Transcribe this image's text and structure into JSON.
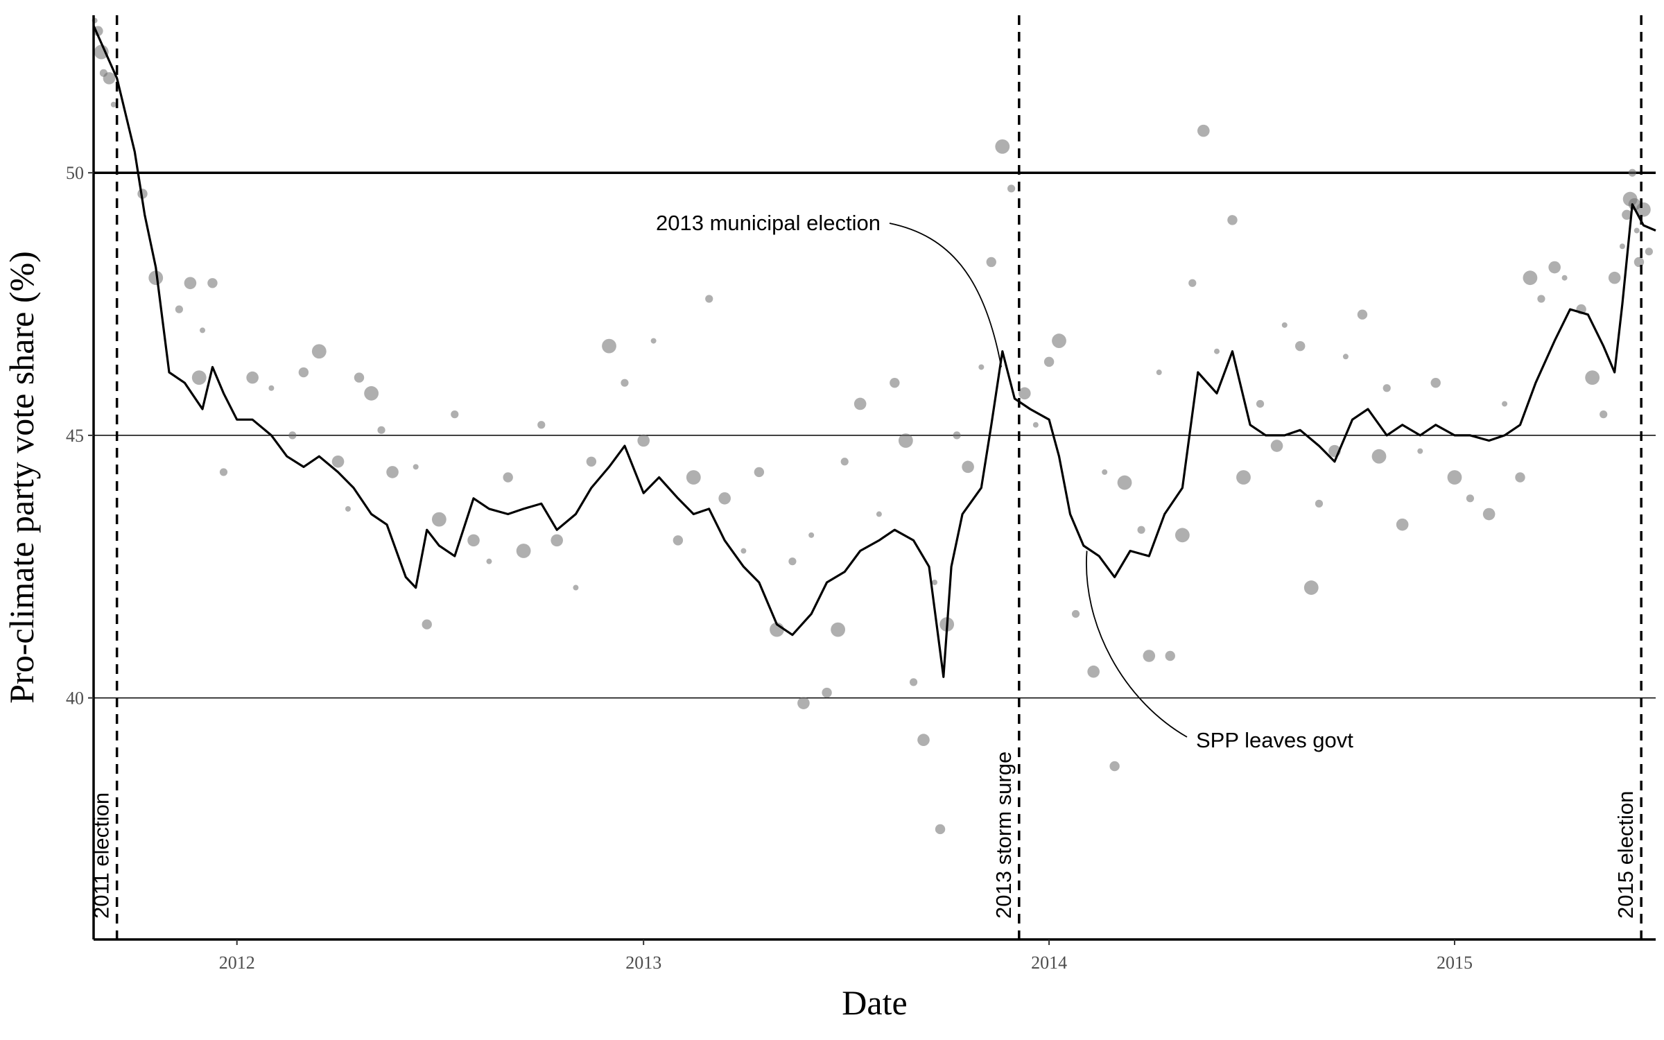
{
  "chart_data": {
    "type": "line",
    "xlabel": "Date",
    "ylabel": "Pro-climate party vote share (%)",
    "x_range": [
      "2011-08-25",
      "2015-07-01"
    ],
    "ylim": [
      35.4,
      53
    ],
    "x_ticks": [
      {
        "date": "2012-01-01",
        "label": "2012"
      },
      {
        "date": "2013-01-01",
        "label": "2013"
      },
      {
        "date": "2014-01-01",
        "label": "2014"
      },
      {
        "date": "2015-01-01",
        "label": "2015"
      }
    ],
    "y_ticks": [
      40,
      45,
      50
    ],
    "reference_lines": [
      {
        "y": 50,
        "style": "solid-bold"
      },
      {
        "y": 45,
        "style": "solid-thin"
      },
      {
        "y": 40,
        "style": "solid-thin"
      }
    ],
    "events": [
      {
        "date": "2011-09-15",
        "label": "2011 election"
      },
      {
        "date": "2013-12-05",
        "label": "2013 storm surge"
      },
      {
        "date": "2015-06-18",
        "label": "2015 election"
      }
    ],
    "annotations": [
      {
        "label": "2013 municipal election",
        "date": "2013-11-19",
        "y": 46.3
      },
      {
        "label": "SPP leaves govt",
        "date": "2014-02-04",
        "y": 42.8
      }
    ],
    "series": [
      {
        "type": "line",
        "values": [
          [
            "2011-08-25",
            52.8
          ],
          [
            "2011-09-15",
            51.8
          ],
          [
            "2011-10-01",
            50.4
          ],
          [
            "2011-10-10",
            49.2
          ],
          [
            "2011-10-20",
            48.2
          ],
          [
            "2011-11-01",
            46.2
          ],
          [
            "2011-11-15",
            46.0
          ],
          [
            "2011-12-01",
            45.5
          ],
          [
            "2011-12-10",
            46.3
          ],
          [
            "2011-12-20",
            45.8
          ],
          [
            "2012-01-01",
            45.3
          ],
          [
            "2012-01-15",
            45.3
          ],
          [
            "2012-02-01",
            45.0
          ],
          [
            "2012-02-15",
            44.6
          ],
          [
            "2012-03-01",
            44.4
          ],
          [
            "2012-03-15",
            44.6
          ],
          [
            "2012-04-01",
            44.3
          ],
          [
            "2012-04-15",
            44.0
          ],
          [
            "2012-05-01",
            43.5
          ],
          [
            "2012-05-15",
            43.3
          ],
          [
            "2012-06-01",
            42.3
          ],
          [
            "2012-06-10",
            42.1
          ],
          [
            "2012-06-20",
            43.2
          ],
          [
            "2012-07-01",
            42.9
          ],
          [
            "2012-07-15",
            42.7
          ],
          [
            "2012-08-01",
            43.8
          ],
          [
            "2012-08-15",
            43.6
          ],
          [
            "2012-09-01",
            43.5
          ],
          [
            "2012-09-15",
            43.6
          ],
          [
            "2012-10-01",
            43.7
          ],
          [
            "2012-10-15",
            43.2
          ],
          [
            "2012-11-01",
            43.5
          ],
          [
            "2012-11-15",
            44.0
          ],
          [
            "2012-12-01",
            44.4
          ],
          [
            "2012-12-15",
            44.8
          ],
          [
            "2013-01-01",
            43.9
          ],
          [
            "2013-01-15",
            44.2
          ],
          [
            "2013-02-01",
            43.8
          ],
          [
            "2013-02-15",
            43.5
          ],
          [
            "2013-03-01",
            43.6
          ],
          [
            "2013-03-15",
            43.0
          ],
          [
            "2013-04-01",
            42.5
          ],
          [
            "2013-04-15",
            42.2
          ],
          [
            "2013-05-01",
            41.4
          ],
          [
            "2013-05-15",
            41.2
          ],
          [
            "2013-06-01",
            41.6
          ],
          [
            "2013-06-15",
            42.2
          ],
          [
            "2013-07-01",
            42.4
          ],
          [
            "2013-07-15",
            42.8
          ],
          [
            "2013-08-01",
            43.0
          ],
          [
            "2013-08-15",
            43.2
          ],
          [
            "2013-09-01",
            43.0
          ],
          [
            "2013-09-15",
            42.5
          ],
          [
            "2013-09-28",
            40.4
          ],
          [
            "2013-10-05",
            42.5
          ],
          [
            "2013-10-15",
            43.5
          ],
          [
            "2013-11-01",
            44.0
          ],
          [
            "2013-11-10",
            45.2
          ],
          [
            "2013-11-20",
            46.6
          ],
          [
            "2013-12-01",
            45.7
          ],
          [
            "2013-12-15",
            45.5
          ],
          [
            "2014-01-01",
            45.3
          ],
          [
            "2014-01-10",
            44.6
          ],
          [
            "2014-01-20",
            43.5
          ],
          [
            "2014-02-01",
            42.9
          ],
          [
            "2014-02-15",
            42.7
          ],
          [
            "2014-03-01",
            42.3
          ],
          [
            "2014-03-15",
            42.8
          ],
          [
            "2014-04-01",
            42.7
          ],
          [
            "2014-04-15",
            43.5
          ],
          [
            "2014-05-01",
            44.0
          ],
          [
            "2014-05-15",
            46.2
          ],
          [
            "2014-06-01",
            45.8
          ],
          [
            "2014-06-15",
            46.6
          ],
          [
            "2014-07-01",
            45.2
          ],
          [
            "2014-07-15",
            45.0
          ],
          [
            "2014-08-01",
            45.0
          ],
          [
            "2014-08-15",
            45.1
          ],
          [
            "2014-09-01",
            44.8
          ],
          [
            "2014-09-15",
            44.5
          ],
          [
            "2014-10-01",
            45.3
          ],
          [
            "2014-10-15",
            45.5
          ],
          [
            "2014-11-01",
            45.0
          ],
          [
            "2014-11-15",
            45.2
          ],
          [
            "2014-12-01",
            45.0
          ],
          [
            "2014-12-15",
            45.2
          ],
          [
            "2015-01-01",
            45.0
          ],
          [
            "2015-01-15",
            45.0
          ],
          [
            "2015-02-01",
            44.9
          ],
          [
            "2015-02-15",
            45.0
          ],
          [
            "2015-03-01",
            45.2
          ],
          [
            "2015-03-15",
            46.0
          ],
          [
            "2015-04-01",
            46.8
          ],
          [
            "2015-04-15",
            47.4
          ],
          [
            "2015-05-01",
            47.3
          ],
          [
            "2015-05-15",
            46.7
          ],
          [
            "2015-05-25",
            46.2
          ],
          [
            "2015-06-01",
            47.5
          ],
          [
            "2015-06-10",
            49.4
          ],
          [
            "2015-06-20",
            49.0
          ],
          [
            "2015-07-01",
            48.9
          ]
        ]
      },
      {
        "type": "scatter",
        "values": [
          [
            "2011-08-26",
            52.9
          ],
          [
            "2011-08-29",
            52.7
          ],
          [
            "2011-09-01",
            52.3
          ],
          [
            "2011-09-03",
            51.9
          ],
          [
            "2011-09-08",
            51.8
          ],
          [
            "2011-09-12",
            51.3
          ],
          [
            "2011-10-08",
            49.6
          ],
          [
            "2011-10-20",
            48.0
          ],
          [
            "2011-11-10",
            47.4
          ],
          [
            "2011-11-20",
            47.9
          ],
          [
            "2011-12-01",
            47.0
          ],
          [
            "2011-12-10",
            47.9
          ],
          [
            "2011-11-28",
            46.1
          ],
          [
            "2011-12-20",
            44.3
          ],
          [
            "2012-01-15",
            46.1
          ],
          [
            "2012-02-01",
            45.9
          ],
          [
            "2012-03-01",
            46.2
          ],
          [
            "2012-03-15",
            46.6
          ],
          [
            "2012-02-20",
            45.0
          ],
          [
            "2012-04-01",
            44.5
          ],
          [
            "2012-04-10",
            43.6
          ],
          [
            "2012-04-20",
            46.1
          ],
          [
            "2012-05-01",
            45.8
          ],
          [
            "2012-05-10",
            45.1
          ],
          [
            "2012-05-20",
            44.3
          ],
          [
            "2012-06-10",
            44.4
          ],
          [
            "2012-06-20",
            41.4
          ],
          [
            "2012-07-01",
            43.4
          ],
          [
            "2012-07-15",
            45.4
          ],
          [
            "2012-08-01",
            43.0
          ],
          [
            "2012-08-15",
            42.6
          ],
          [
            "2012-09-01",
            44.2
          ],
          [
            "2012-09-15",
            42.8
          ],
          [
            "2012-10-01",
            45.2
          ],
          [
            "2012-10-15",
            43.0
          ],
          [
            "2012-11-01",
            42.1
          ],
          [
            "2012-11-15",
            44.5
          ],
          [
            "2012-12-01",
            46.7
          ],
          [
            "2012-12-15",
            46.0
          ],
          [
            "2013-01-01",
            44.9
          ],
          [
            "2013-01-10",
            46.8
          ],
          [
            "2013-02-01",
            43.0
          ],
          [
            "2013-02-15",
            44.2
          ],
          [
            "2013-03-01",
            47.6
          ],
          [
            "2013-03-15",
            43.8
          ],
          [
            "2013-04-01",
            42.8
          ],
          [
            "2013-04-15",
            44.3
          ],
          [
            "2013-05-01",
            41.3
          ],
          [
            "2013-05-15",
            42.6
          ],
          [
            "2013-05-25",
            39.9
          ],
          [
            "2013-06-01",
            43.1
          ],
          [
            "2013-06-15",
            40.1
          ],
          [
            "2013-06-25",
            41.3
          ],
          [
            "2013-07-01",
            44.5
          ],
          [
            "2013-07-15",
            45.6
          ],
          [
            "2013-08-01",
            43.5
          ],
          [
            "2013-08-15",
            46.0
          ],
          [
            "2013-08-25",
            44.9
          ],
          [
            "2013-09-01",
            40.3
          ],
          [
            "2013-09-10",
            39.2
          ],
          [
            "2013-09-20",
            42.2
          ],
          [
            "2013-09-25",
            37.5
          ],
          [
            "2013-10-01",
            41.4
          ],
          [
            "2013-10-10",
            45.0
          ],
          [
            "2013-10-20",
            44.4
          ],
          [
            "2013-11-01",
            46.3
          ],
          [
            "2013-11-10",
            48.3
          ],
          [
            "2013-11-20",
            50.5
          ],
          [
            "2013-11-28",
            49.7
          ],
          [
            "2013-12-10",
            45.8
          ],
          [
            "2013-12-20",
            45.2
          ],
          [
            "2014-01-01",
            46.4
          ],
          [
            "2014-01-10",
            46.8
          ],
          [
            "2014-01-25",
            41.6
          ],
          [
            "2014-02-10",
            40.5
          ],
          [
            "2014-02-20",
            44.3
          ],
          [
            "2014-03-01",
            38.7
          ],
          [
            "2014-03-10",
            44.1
          ],
          [
            "2014-03-25",
            43.2
          ],
          [
            "2014-04-01",
            40.8
          ],
          [
            "2014-04-10",
            46.2
          ],
          [
            "2014-04-20",
            40.8
          ],
          [
            "2014-05-01",
            43.1
          ],
          [
            "2014-05-10",
            47.9
          ],
          [
            "2014-05-20",
            50.8
          ],
          [
            "2014-06-01",
            46.6
          ],
          [
            "2014-06-15",
            49.1
          ],
          [
            "2014-06-25",
            44.2
          ],
          [
            "2014-07-10",
            45.6
          ],
          [
            "2014-07-25",
            44.8
          ],
          [
            "2014-08-01",
            47.1
          ],
          [
            "2014-08-15",
            46.7
          ],
          [
            "2014-08-25",
            42.1
          ],
          [
            "2014-09-01",
            43.7
          ],
          [
            "2014-09-15",
            44.7
          ],
          [
            "2014-09-25",
            46.5
          ],
          [
            "2014-10-10",
            47.3
          ],
          [
            "2014-10-25",
            44.6
          ],
          [
            "2014-11-01",
            45.9
          ],
          [
            "2014-11-15",
            43.3
          ],
          [
            "2014-12-01",
            44.7
          ],
          [
            "2014-12-15",
            46.0
          ],
          [
            "2015-01-01",
            44.2
          ],
          [
            "2015-01-15",
            43.8
          ],
          [
            "2015-02-01",
            43.5
          ],
          [
            "2015-02-15",
            45.6
          ],
          [
            "2015-03-01",
            44.2
          ],
          [
            "2015-03-10",
            48.0
          ],
          [
            "2015-03-20",
            47.6
          ],
          [
            "2015-04-01",
            48.2
          ],
          [
            "2015-04-10",
            48.0
          ],
          [
            "2015-04-25",
            47.4
          ],
          [
            "2015-05-05",
            46.1
          ],
          [
            "2015-05-15",
            45.4
          ],
          [
            "2015-05-25",
            48.0
          ],
          [
            "2015-06-01",
            48.6
          ],
          [
            "2015-06-05",
            49.2
          ],
          [
            "2015-06-08",
            49.5
          ],
          [
            "2015-06-10",
            50.0
          ],
          [
            "2015-06-12",
            49.4
          ],
          [
            "2015-06-14",
            48.9
          ],
          [
            "2015-06-16",
            48.3
          ],
          [
            "2015-06-20",
            49.3
          ],
          [
            "2015-06-25",
            48.5
          ]
        ]
      }
    ]
  }
}
